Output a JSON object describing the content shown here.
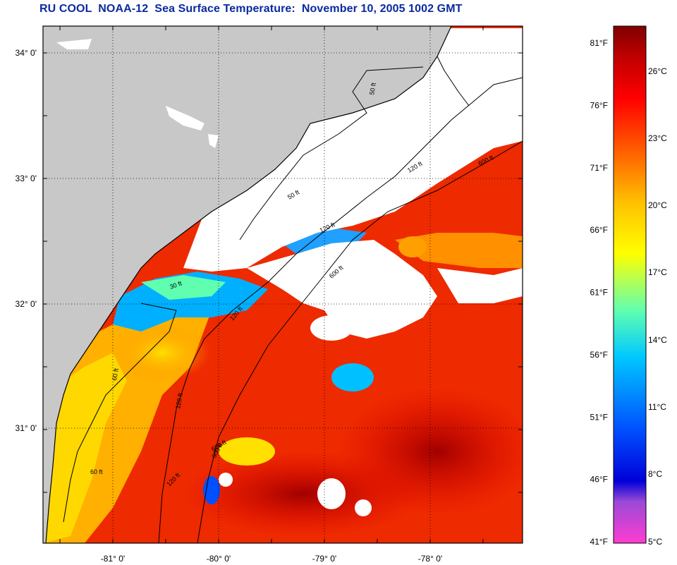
{
  "title": "RU COOL  NOAA-12  Sea Surface Temperature:  November 10, 2005 1002 GMT",
  "colors": {
    "land": "#c8c8c8",
    "cloud": "#ffffff",
    "border": "#000000",
    "title": "#0b2a9e"
  },
  "map": {
    "lat_labels": [
      "34° 0'",
      "33° 0'",
      "32° 0'",
      "31° 0'"
    ],
    "lon_labels": [
      "-81° 0'",
      "-80° 0'",
      "-79° 0'",
      "-78° 0'"
    ],
    "contour_labels": [
      "50 ft",
      "120 ft",
      "600 ft",
      "50 ft",
      "120 ft",
      "600 ft",
      "30 ft",
      "120 ft",
      "600 ft",
      "60 ft",
      "120 ft",
      "600 ft",
      "60 ft",
      "120 ft"
    ]
  },
  "colorbar": {
    "fahrenheit": [
      "81°F",
      "76°F",
      "71°F",
      "66°F",
      "61°F",
      "56°F",
      "51°F",
      "46°F",
      "41°F"
    ],
    "celsius": [
      "26°C",
      "23°C",
      "20°C",
      "17°C",
      "14°C",
      "11°C",
      "8°C",
      "5°C"
    ],
    "stops": [
      "#ff3cd2",
      "#9b4ad6",
      "#0000d8",
      "#0050ff",
      "#00c8ff",
      "#60ffb0",
      "#ffff00",
      "#ffc000",
      "#ff7000",
      "#ff0000",
      "#c00000",
      "#800000"
    ]
  }
}
